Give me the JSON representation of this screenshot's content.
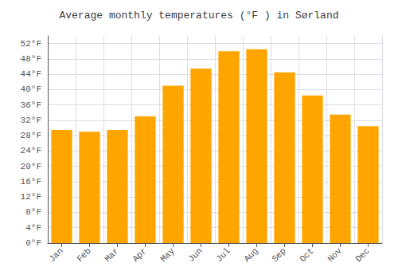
{
  "chart_data": {
    "type": "bar",
    "title": "Average monthly temperatures (°F ) in Sørland",
    "categories": [
      "Jan",
      "Feb",
      "Mar",
      "Apr",
      "May",
      "Jun",
      "Jul",
      "Aug",
      "Sep",
      "Oct",
      "Nov",
      "Dec"
    ],
    "values": [
      29.5,
      29.0,
      29.5,
      33.0,
      41.0,
      45.5,
      50.0,
      50.5,
      44.5,
      38.5,
      33.5,
      30.5
    ],
    "color": "#FFA500",
    "ylim": [
      0,
      54
    ],
    "yticks": [
      {
        "value": 0,
        "label": "0°F"
      },
      {
        "value": 4,
        "label": "4°F"
      },
      {
        "value": 8,
        "label": "8°F"
      },
      {
        "value": 12,
        "label": "12°F"
      },
      {
        "value": 16,
        "label": "16°F"
      },
      {
        "value": 20,
        "label": "20°F"
      },
      {
        "value": 24,
        "label": "24°F"
      },
      {
        "value": 28,
        "label": "28°F"
      },
      {
        "value": 32,
        "label": "32°F"
      },
      {
        "value": 36,
        "label": "36°F"
      },
      {
        "value": 40,
        "label": "40°F"
      },
      {
        "value": 44,
        "label": "44°F"
      },
      {
        "value": 48,
        "label": "48°F"
      },
      {
        "value": 52,
        "label": "52°F"
      }
    ],
    "grid": true
  }
}
